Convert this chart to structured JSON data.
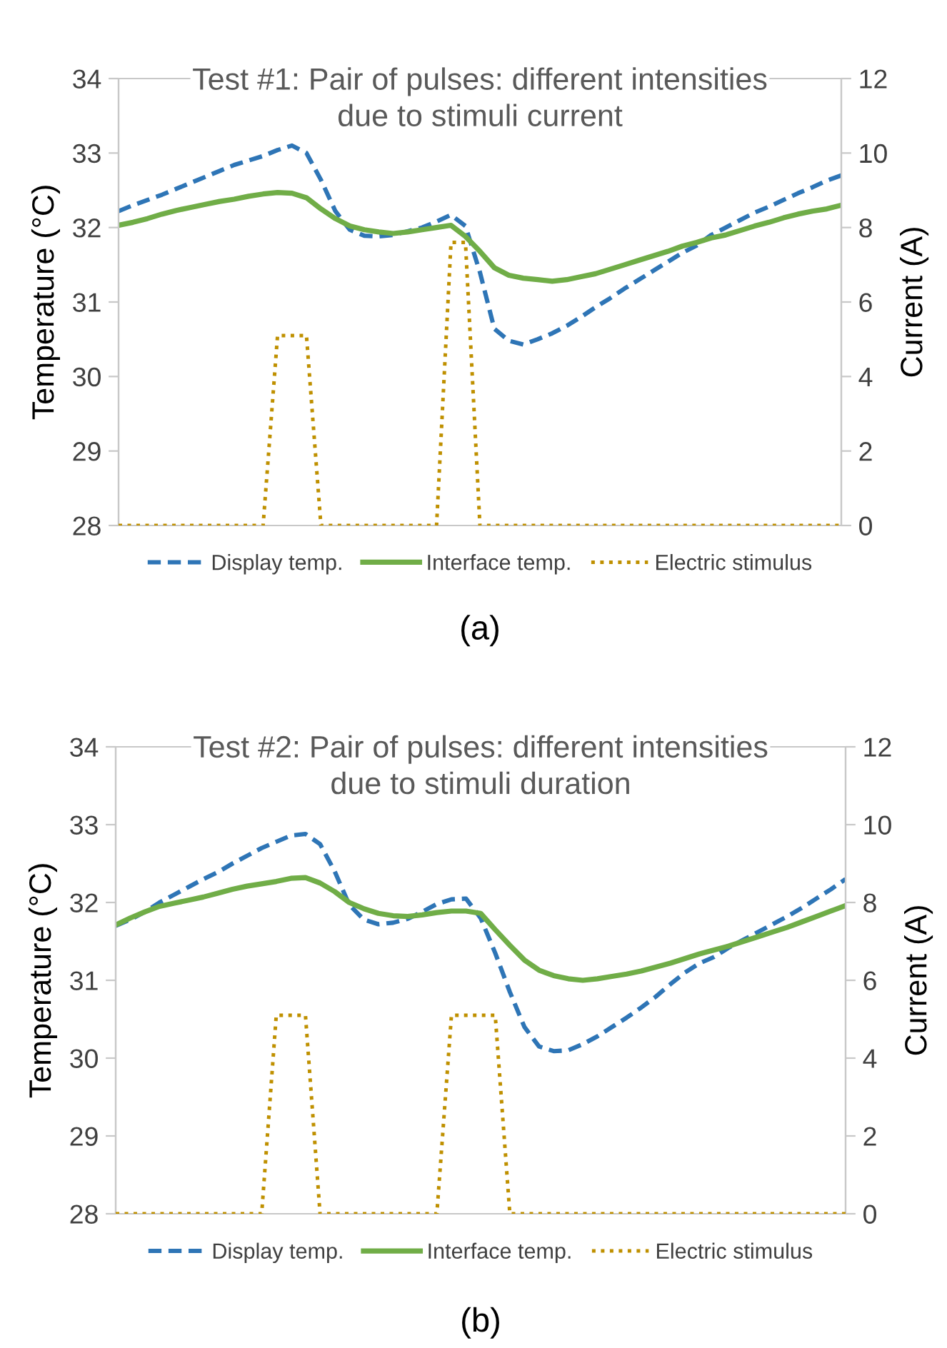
{
  "chart_data": [
    {
      "type": "line",
      "title": "Test #1: Pair of pulses: different intensities\ndue to stimuli current",
      "ylabel": "Temperature (°C)",
      "y2label": "Current (A)",
      "categories": [
        null,
        null,
        null,
        null,
        null,
        null,
        null,
        null,
        null,
        null,
        null,
        null,
        null,
        null,
        null,
        null,
        null,
        null,
        null,
        null,
        null,
        null,
        null,
        null,
        null,
        null,
        null,
        null,
        null,
        null,
        null,
        null,
        null,
        null,
        null,
        null,
        null,
        null,
        null,
        null,
        null,
        null,
        null,
        null,
        null,
        null,
        null,
        null,
        null,
        null,
        null
      ],
      "ylim": [
        28,
        34
      ],
      "yticks": [
        28,
        29,
        30,
        31,
        32,
        33,
        34
      ],
      "y2lim": [
        0,
        12
      ],
      "y2ticks": [
        0,
        2,
        4,
        6,
        8,
        10,
        12
      ],
      "grid": false,
      "legend": "bottom",
      "tick_labels": "y",
      "annotations": [
        "(a)"
      ],
      "series": [
        {
          "name": "Display temp.",
          "color": "#2e75b6",
          "line_style": "dashed",
          "values": [
            32.22,
            32.3,
            32.37,
            32.44,
            32.52,
            32.6,
            32.68,
            32.76,
            32.84,
            32.9,
            32.96,
            33.04,
            33.1,
            33.0,
            32.64,
            32.22,
            31.97,
            31.89,
            31.88,
            31.9,
            31.95,
            32.0,
            32.08,
            32.17,
            32.02,
            31.4,
            30.64,
            30.48,
            30.43,
            30.5,
            30.58,
            30.68,
            30.8,
            30.93,
            31.05,
            31.18,
            31.3,
            31.42,
            31.54,
            31.66,
            31.76,
            31.9,
            32.0,
            32.1,
            32.2,
            32.28,
            32.37,
            32.46,
            32.54,
            32.63,
            32.7
          ]
        },
        {
          "name": "Interface temp.",
          "color": "#70ad47",
          "line_style": "solid",
          "values": [
            32.03,
            32.07,
            32.12,
            32.18,
            32.23,
            32.27,
            32.31,
            32.35,
            32.38,
            32.42,
            32.45,
            32.47,
            32.46,
            32.4,
            32.25,
            32.12,
            32.02,
            31.97,
            31.94,
            31.92,
            31.94,
            31.97,
            32.0,
            32.03,
            31.88,
            31.68,
            31.46,
            31.36,
            31.32,
            31.3,
            31.28,
            31.3,
            31.34,
            31.38,
            31.44,
            31.5,
            31.56,
            31.62,
            31.68,
            31.75,
            31.8,
            31.86,
            31.9,
            31.96,
            32.02,
            32.07,
            32.13,
            32.18,
            32.22,
            32.25,
            32.3
          ]
        },
        {
          "name": "Electric stimulus",
          "color": "#bf9000",
          "line_style": "dotted",
          "axis": "y2",
          "values": [
            0,
            0,
            0,
            0,
            0,
            0,
            0,
            0,
            0,
            0,
            0,
            5.1,
            5.1,
            5.1,
            0,
            0,
            0,
            0,
            0,
            0,
            0,
            0,
            0,
            7.6,
            7.6,
            0,
            0,
            0,
            0,
            0,
            0,
            0,
            0,
            0,
            0,
            0,
            0,
            0,
            0,
            0,
            0,
            0,
            0,
            0,
            0,
            0,
            0,
            0,
            0,
            0,
            0
          ]
        }
      ]
    },
    {
      "type": "line",
      "title": "Test #2: Pair of pulses: different intensities\ndue to stimuli duration",
      "ylabel": "Temperature (°C)",
      "y2label": "Current (A)",
      "categories": [
        null,
        null,
        null,
        null,
        null,
        null,
        null,
        null,
        null,
        null,
        null,
        null,
        null,
        null,
        null,
        null,
        null,
        null,
        null,
        null,
        null,
        null,
        null,
        null,
        null,
        null,
        null,
        null,
        null,
        null,
        null,
        null,
        null,
        null,
        null,
        null,
        null,
        null,
        null,
        null,
        null,
        null,
        null,
        null,
        null,
        null,
        null,
        null,
        null,
        null,
        null
      ],
      "ylim": [
        28,
        34
      ],
      "yticks": [
        28,
        29,
        30,
        31,
        32,
        33,
        34
      ],
      "y2lim": [
        0,
        12
      ],
      "y2ticks": [
        0,
        2,
        4,
        6,
        8,
        10,
        12
      ],
      "grid": false,
      "legend": "bottom",
      "tick_labels": "y",
      "annotations": [
        "(b)"
      ],
      "series": [
        {
          "name": "Display temp.",
          "color": "#2e75b6",
          "line_style": "dashed",
          "values": [
            31.7,
            31.78,
            31.88,
            32.0,
            32.1,
            32.2,
            32.3,
            32.39,
            32.5,
            32.6,
            32.7,
            32.78,
            32.86,
            32.88,
            32.75,
            32.4,
            31.97,
            31.78,
            31.72,
            31.74,
            31.79,
            31.88,
            31.98,
            32.04,
            32.05,
            31.8,
            31.35,
            30.85,
            30.4,
            30.15,
            30.09,
            30.1,
            30.18,
            30.28,
            30.4,
            30.52,
            30.65,
            30.79,
            30.95,
            31.1,
            31.22,
            31.3,
            31.42,
            31.52,
            31.62,
            31.72,
            31.82,
            31.93,
            32.05,
            32.17,
            32.3
          ]
        },
        {
          "name": "Interface temp.",
          "color": "#70ad47",
          "line_style": "solid",
          "values": [
            31.71,
            31.8,
            31.88,
            31.95,
            31.99,
            32.03,
            32.07,
            32.12,
            32.17,
            32.21,
            32.24,
            32.27,
            32.31,
            32.32,
            32.25,
            32.14,
            32.0,
            31.92,
            31.86,
            31.83,
            31.82,
            31.84,
            31.87,
            31.89,
            31.89,
            31.86,
            31.65,
            31.45,
            31.26,
            31.13,
            31.06,
            31.02,
            31.0,
            31.02,
            31.05,
            31.08,
            31.12,
            31.17,
            31.22,
            31.28,
            31.34,
            31.39,
            31.44,
            31.5,
            31.56,
            31.62,
            31.68,
            31.75,
            31.82,
            31.89,
            31.96
          ]
        },
        {
          "name": "Electric stimulus",
          "color": "#bf9000",
          "line_style": "dotted",
          "axis": "y2",
          "values": [
            0,
            0,
            0,
            0,
            0,
            0,
            0,
            0,
            0,
            0,
            0,
            5.1,
            5.1,
            5.1,
            0,
            0,
            0,
            0,
            0,
            0,
            0,
            0,
            0,
            5.1,
            5.1,
            5.1,
            5.1,
            0,
            0,
            0,
            0,
            0,
            0,
            0,
            0,
            0,
            0,
            0,
            0,
            0,
            0,
            0,
            0,
            0,
            0,
            0,
            0,
            0,
            0,
            0,
            0
          ]
        }
      ]
    }
  ]
}
